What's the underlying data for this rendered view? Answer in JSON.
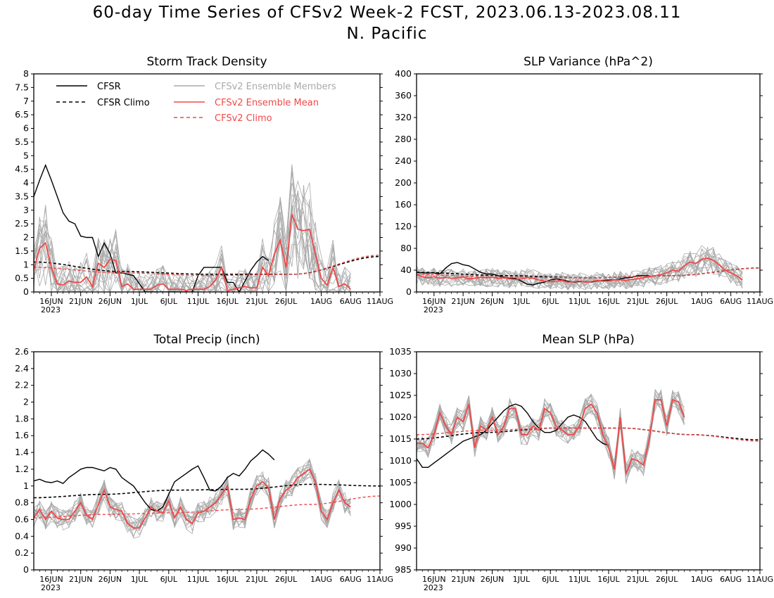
{
  "page": {
    "title_line1": "60-day Time Series of CFSv2 Week-2 FCST, 2023.06.13-2023.08.11",
    "title_line2": "N. Pacific"
  },
  "legend": {
    "cfsr": "CFSR",
    "cfsr_climo": "CFSR Climo",
    "members": "CFSv2 Ensemble Members",
    "ens_mean": "CFSv2 Ensemble Mean",
    "cfs_climo": "CFSv2 Climo"
  },
  "colors": {
    "cfsr": "#000000",
    "members": "#aaaaaa",
    "ens_mean": "#f04848",
    "cfs_climo": "#f04848",
    "legend_members_text": "#aaaaaa",
    "legend_mean_text": "#f04848"
  },
  "chart_data": [
    {
      "id": "storm",
      "type": "line",
      "title": "Storm Track Density",
      "x_ticks": [
        "16JUN",
        "21JUN",
        "26JUN",
        "1JUL",
        "6JUL",
        "11JUL",
        "16JUL",
        "21JUL",
        "26JUL",
        "1AUG",
        "6AUG",
        "11AUG"
      ],
      "x_tick_days": [
        3,
        8,
        13,
        18,
        23,
        28,
        33,
        38,
        43,
        49,
        54,
        59
      ],
      "year_label": "2023",
      "ylim": [
        0,
        8
      ],
      "yticks": [
        0,
        0.5,
        1,
        1.5,
        2,
        2.5,
        3,
        3.5,
        4,
        4.5,
        5,
        5.5,
        6,
        6.5,
        7,
        7.5,
        8
      ],
      "series": [
        {
          "name": "CFSR",
          "kind": "obs",
          "values": [
            3.5,
            4.1,
            4.65,
            4.1,
            3.5,
            2.9,
            2.6,
            2.5,
            2.05,
            2.0,
            2.0,
            1.3,
            1.8,
            1.4,
            0.7,
            0.7,
            0.65,
            0.6,
            0.3,
            0,
            0,
            0,
            0,
            0,
            0,
            0,
            0,
            0,
            0.6,
            0.9,
            0.9,
            0.9,
            0.9,
            0.35,
            0.35,
            0,
            0.4,
            0.8,
            1.1,
            1.3,
            1.15
          ]
        },
        {
          "name": "CFSR Climo",
          "kind": "obs_climo",
          "values": [
            1.1,
            0.75,
            0.65,
            0.65,
            1.3
          ]
        },
        {
          "name": "CFSv2 Ensemble Mean",
          "kind": "mean",
          "values": [
            0.8,
            1.6,
            1.8,
            0.9,
            0.3,
            0.25,
            0.4,
            0.35,
            0.35,
            0.55,
            0.2,
            1.05,
            0.9,
            1.2,
            1.15,
            0.2,
            0.3,
            0.1,
            0.1,
            0.1,
            0.1,
            0.25,
            0.3,
            0.1,
            0.1,
            0.1,
            0.05,
            0.1,
            0.1,
            0.1,
            0.2,
            0.45,
            0.9,
            0.05,
            0.1,
            0.15,
            0.2,
            0.15,
            0.15,
            0.9,
            0.6,
            1.4,
            1.9,
            0.9,
            2.85,
            2.3,
            2.25,
            2.3,
            1.4,
            0.5,
            0.25,
            0.9,
            0.2,
            0.3,
            0.1
          ]
        },
        {
          "name": "CFSv2 Climo",
          "kind": "climo",
          "values": [
            0.9,
            0.7,
            0.6,
            0.65,
            1.35
          ]
        }
      ]
    },
    {
      "id": "slpvar",
      "type": "line",
      "title": "SLP Variance (hPa^2)",
      "x_ticks": [
        "16JUN",
        "21JUN",
        "26JUN",
        "1JUL",
        "6JUL",
        "11JUL",
        "16JUL",
        "21JUL",
        "26JUL",
        "1AUG",
        "6AUG",
        "11AUG"
      ],
      "x_tick_days": [
        3,
        8,
        13,
        18,
        23,
        28,
        33,
        38,
        43,
        49,
        54,
        59
      ],
      "year_label": "2023",
      "ylim": [
        0,
        400
      ],
      "yticks": [
        0,
        40,
        80,
        120,
        160,
        200,
        240,
        280,
        320,
        360,
        400
      ],
      "series": [
        {
          "name": "CFSR",
          "kind": "obs",
          "values": [
            36,
            35,
            35,
            35,
            33,
            44,
            52,
            54,
            50,
            48,
            42,
            36,
            33,
            33,
            30,
            27,
            25,
            25,
            20,
            14,
            13,
            16,
            18,
            22,
            24,
            22,
            20,
            18,
            19,
            19,
            18,
            20,
            21,
            22,
            22,
            24,
            26,
            27,
            30,
            30,
            30
          ]
        },
        {
          "name": "CFSR Climo",
          "kind": "obs_climo",
          "values": [
            36,
            30,
            26,
            30,
            44
          ]
        },
        {
          "name": "CFSv2 Ensemble Mean",
          "kind": "mean",
          "values": [
            32,
            28,
            26,
            28,
            25,
            27,
            25,
            26,
            27,
            24,
            25,
            27,
            26,
            27,
            25,
            26,
            24,
            23,
            24,
            26,
            25,
            22,
            20,
            19,
            20,
            21,
            18,
            19,
            20,
            18,
            19,
            21,
            20,
            20,
            22,
            22,
            21,
            23,
            24,
            26,
            28,
            30,
            32,
            35,
            40,
            38,
            48,
            55,
            52,
            60,
            62,
            58,
            50,
            40,
            35,
            30,
            22
          ]
        },
        {
          "name": "CFSv2 Climo",
          "kind": "climo",
          "values": [
            32,
            27,
            26,
            30,
            44
          ]
        }
      ]
    },
    {
      "id": "precip",
      "type": "line",
      "title": "Total Precip (inch)",
      "x_ticks": [
        "16JUN",
        "21JUN",
        "26JUN",
        "1JUL",
        "6JUL",
        "11JUL",
        "16JUL",
        "21JUL",
        "26JUL",
        "1AUG",
        "6AUG",
        "11AUG"
      ],
      "x_tick_days": [
        3,
        8,
        13,
        18,
        23,
        28,
        33,
        38,
        43,
        49,
        54,
        59
      ],
      "year_label": "2023",
      "ylim": [
        0,
        2.6
      ],
      "yticks": [
        0,
        0.2,
        0.4,
        0.6,
        0.8,
        1,
        1.2,
        1.4,
        1.6,
        1.8,
        2,
        2.2,
        2.4,
        2.6
      ],
      "series": [
        {
          "name": "CFSR",
          "kind": "obs",
          "values": [
            1.06,
            1.08,
            1.05,
            1.04,
            1.06,
            1.03,
            1.1,
            1.15,
            1.2,
            1.22,
            1.22,
            1.2,
            1.18,
            1.22,
            1.2,
            1.1,
            1.05,
            1.0,
            0.9,
            0.8,
            0.72,
            0.7,
            0.75,
            0.9,
            1.05,
            1.1,
            1.15,
            1.2,
            1.24,
            1.1,
            0.95,
            0.94,
            1.0,
            1.1,
            1.15,
            1.12,
            1.2,
            1.3,
            1.36,
            1.43,
            1.38,
            1.31
          ]
        },
        {
          "name": "CFSR Climo",
          "kind": "obs_climo",
          "values": [
            0.86,
            0.9,
            0.95,
            0.96,
            1.02,
            1.0
          ]
        },
        {
          "name": "CFSv2 Ensemble Mean",
          "kind": "mean",
          "values": [
            0.62,
            0.72,
            0.6,
            0.7,
            0.62,
            0.6,
            0.6,
            0.7,
            0.8,
            0.65,
            0.6,
            0.78,
            0.95,
            0.75,
            0.72,
            0.7,
            0.55,
            0.5,
            0.5,
            0.62,
            0.75,
            0.7,
            0.68,
            0.82,
            0.62,
            0.75,
            0.6,
            0.55,
            0.68,
            0.7,
            0.75,
            0.8,
            0.9,
            1.0,
            0.6,
            0.62,
            0.6,
            0.85,
            1.0,
            1.05,
            0.98,
            0.6,
            0.85,
            0.95,
            1.0,
            1.1,
            1.15,
            1.2,
            1.05,
            0.7,
            0.6,
            0.8,
            0.95,
            0.8,
            0.75
          ]
        },
        {
          "name": "CFSv2 Climo",
          "kind": "climo",
          "values": [
            0.62,
            0.66,
            0.68,
            0.72,
            0.78,
            0.88
          ]
        }
      ]
    },
    {
      "id": "mslp",
      "type": "line",
      "title": "Mean SLP (hPa)",
      "x_ticks": [
        "16JUN",
        "21JUN",
        "26JUN",
        "1JUL",
        "6JUL",
        "11JUL",
        "16JUL",
        "21JUL",
        "26JUL",
        "1AUG",
        "6AUG",
        "11AUG"
      ],
      "x_tick_days": [
        3,
        8,
        13,
        18,
        23,
        28,
        33,
        38,
        43,
        49,
        54,
        59
      ],
      "year_label": "2023",
      "ylim": [
        985,
        1035
      ],
      "yticks": [
        985,
        990,
        995,
        1000,
        1005,
        1010,
        1015,
        1020,
        1025,
        1030,
        1035
      ],
      "series": [
        {
          "name": "CFSR",
          "kind": "obs",
          "values": [
            1010.5,
            1008.5,
            1008.5,
            1009.5,
            1010.5,
            1011.5,
            1012.5,
            1013.5,
            1014.5,
            1015,
            1015.5,
            1016,
            1017,
            1018.5,
            1020,
            1021.5,
            1022.5,
            1023,
            1022.5,
            1021,
            1019,
            1017.5,
            1016.5,
            1016.5,
            1017,
            1018.5,
            1020,
            1020.5,
            1020,
            1019,
            1017,
            1015,
            1014,
            1013.5
          ]
        },
        {
          "name": "CFSR Climo",
          "kind": "obs_climo",
          "values": [
            1015,
            1016.5,
            1017.5,
            1017.5,
            1016,
            1014.8
          ]
        },
        {
          "name": "CFSv2 Ensemble Mean",
          "kind": "mean",
          "values": [
            1014,
            1014,
            1013,
            1016,
            1021,
            1018,
            1016,
            1020,
            1019,
            1023,
            1013,
            1018,
            1017,
            1020,
            1016,
            1018,
            1022,
            1022,
            1016,
            1016,
            1018,
            1017,
            1022,
            1021,
            1018,
            1017,
            1016,
            1016,
            1018,
            1022,
            1023,
            1021,
            1016,
            1013,
            1008,
            1020,
            1007,
            1010.5,
            1010,
            1009,
            1015,
            1024,
            1024,
            1018,
            1024,
            1023.5,
            1020
          ]
        },
        {
          "name": "CFSv2 Climo",
          "kind": "climo",
          "values": [
            1016,
            1017,
            1017.5,
            1017.5,
            1016,
            1014.5
          ]
        }
      ]
    }
  ]
}
